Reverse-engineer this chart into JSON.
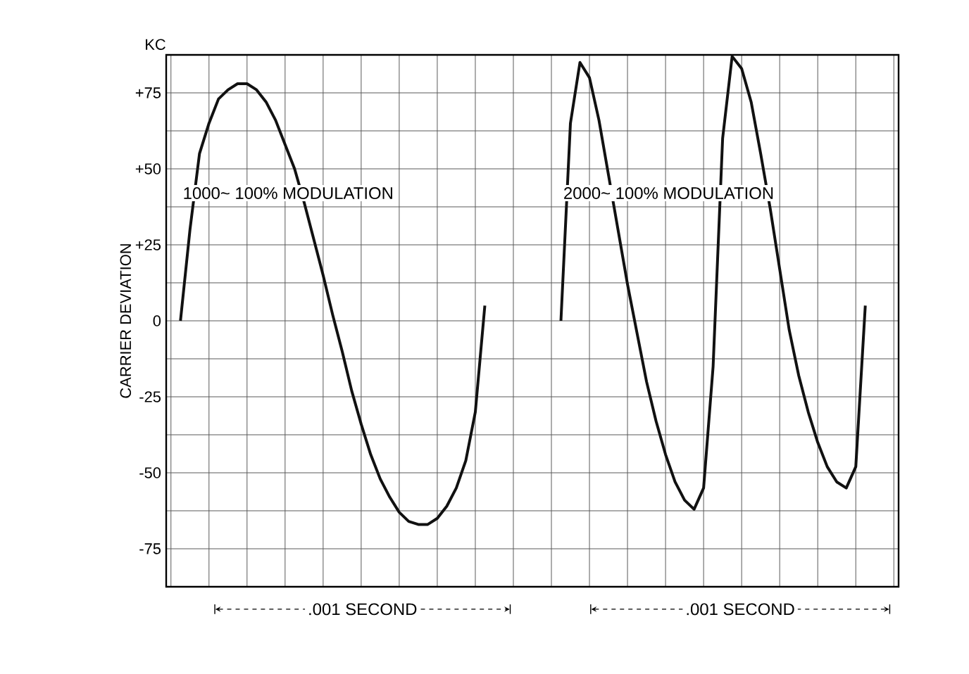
{
  "chart_data": {
    "type": "line",
    "ylabel": "CARRIER DEVIATION",
    "annotations": [
      "KC",
      ".001 SECOND",
      ".001 SECOND"
    ],
    "categories": [
      null,
      null,
      null,
      null,
      null,
      null,
      null,
      null,
      null,
      null,
      null,
      null,
      null,
      null,
      null,
      null,
      null,
      null,
      null,
      null,
      null,
      null,
      null,
      null,
      null,
      null,
      null,
      null,
      null,
      null,
      null,
      null,
      null,
      null,
      null,
      null,
      null,
      null,
      null,
      null,
      null,
      null,
      null,
      null,
      null,
      null,
      null,
      null,
      null,
      null,
      null,
      null,
      null,
      null,
      null,
      null,
      null,
      null,
      null,
      null,
      null,
      null,
      null,
      null,
      null,
      null,
      null,
      null,
      null,
      null,
      null,
      null,
      null,
      null,
      null,
      null,
      null
    ],
    "ylim": [
      -87.5,
      87.5
    ],
    "yticks": [
      {
        "value": -75,
        "label": "-75"
      },
      {
        "value": -50,
        "label": "-50"
      },
      {
        "value": -25,
        "label": "-25"
      },
      {
        "value": 0,
        "label": "0"
      },
      {
        "value": 25,
        "label": "+25"
      },
      {
        "value": 50,
        "label": "+50"
      },
      {
        "value": 75,
        "label": "+75"
      }
    ],
    "tick_labels": "y",
    "grid": true,
    "line_style": "solid",
    "series": [
      {
        "name": "1000~ 100% MODULATION",
        "color": "#111111",
        "values": [
          null,
          0,
          30,
          55,
          65,
          73,
          76,
          78,
          78,
          76,
          72,
          66,
          58,
          50,
          39,
          27,
          15,
          2,
          -10,
          -23,
          -34,
          -44,
          -52,
          -58,
          -63,
          -66,
          -67,
          -67,
          -65,
          -61,
          -55,
          -46,
          -30,
          5,
          null,
          null,
          null,
          null,
          null,
          null,
          null,
          null,
          null,
          null,
          null,
          null,
          null,
          null,
          null,
          null,
          null,
          null,
          null,
          null,
          null,
          null,
          null,
          null,
          null,
          null,
          null,
          null,
          null,
          null,
          null,
          null,
          null,
          null,
          null,
          null,
          null,
          null,
          null,
          null,
          null,
          null,
          null
        ]
      },
      {
        "name": "2000~ 100% MODULATION",
        "color": "#111111",
        "values": [
          null,
          null,
          null,
          null,
          null,
          null,
          null,
          null,
          null,
          null,
          null,
          null,
          null,
          null,
          null,
          null,
          null,
          null,
          null,
          null,
          null,
          null,
          null,
          null,
          null,
          null,
          null,
          null,
          null,
          null,
          null,
          null,
          null,
          null,
          null,
          null,
          null,
          null,
          null,
          null,
          null,
          0,
          65,
          85,
          80,
          66,
          48,
          30,
          12,
          -4,
          -20,
          -33,
          -44,
          -53,
          -59,
          -62,
          -55,
          -15,
          60,
          87,
          83,
          72,
          55,
          37,
          17,
          -3,
          -18,
          -30,
          -40,
          -48,
          -53,
          -55,
          -48,
          5,
          null,
          null,
          null
        ]
      }
    ]
  }
}
